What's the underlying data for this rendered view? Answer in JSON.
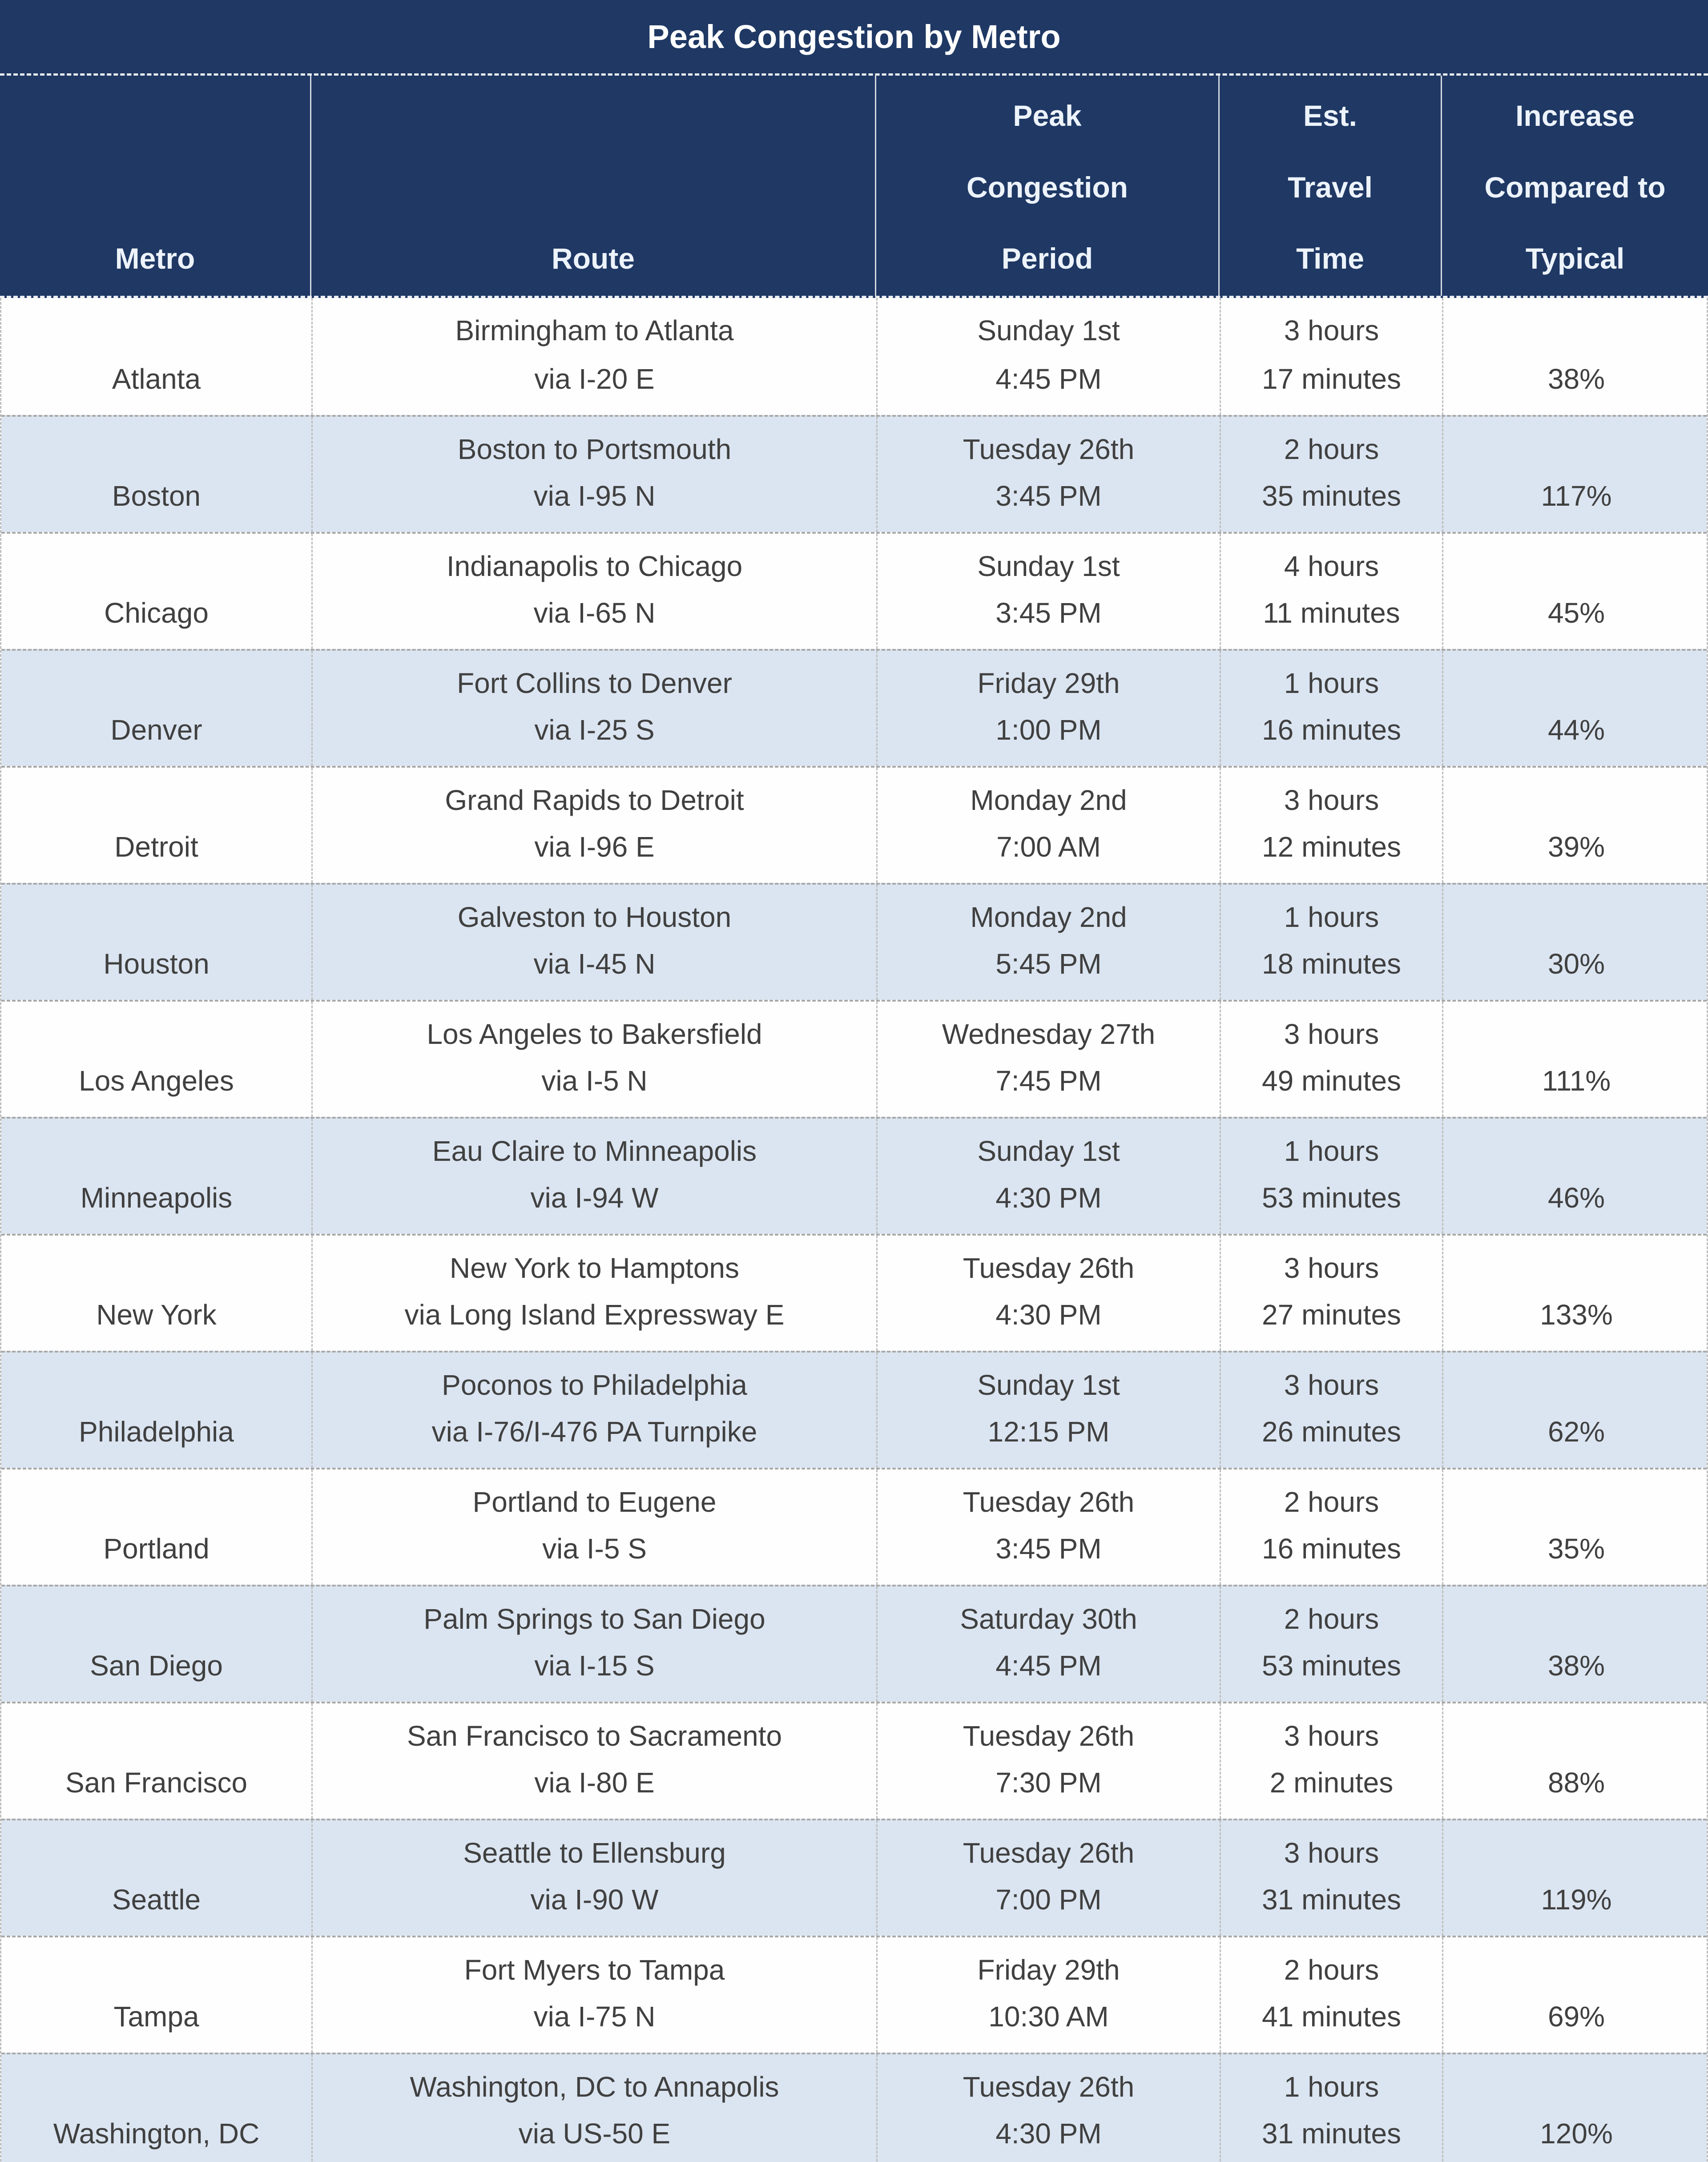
{
  "title": "Peak Congestion by Metro",
  "colors": {
    "navy": "#1F3864",
    "row-white": "#FEFEFE",
    "row-blue": "#DBE5F1",
    "body-text": "#404040",
    "header-text": "#EDF3FB",
    "divider-gray": "#A8A8A8"
  },
  "header": {
    "metro": [
      "Metro"
    ],
    "route": [
      "Route"
    ],
    "period": [
      "Peak",
      "Congestion",
      "Period"
    ],
    "time": [
      "Est.",
      "Travel",
      "Time"
    ],
    "increase": [
      "Increase",
      "Compared to",
      "Typical"
    ]
  },
  "rows": [
    {
      "metro": "Atlanta",
      "route": [
        "Birmingham to Atlanta",
        "via I-20 E"
      ],
      "period": [
        "Sunday 1st",
        "4:45 PM"
      ],
      "time": [
        "3 hours",
        "17 minutes"
      ],
      "increase": "38%"
    },
    {
      "metro": "Boston",
      "route": [
        "Boston to Portsmouth",
        "via I-95 N"
      ],
      "period": [
        "Tuesday 26th",
        "3:45 PM"
      ],
      "time": [
        "2 hours",
        "35 minutes"
      ],
      "increase": "117%"
    },
    {
      "metro": "Chicago",
      "route": [
        "Indianapolis to Chicago",
        "via I-65 N"
      ],
      "period": [
        "Sunday 1st",
        "3:45 PM"
      ],
      "time": [
        "4 hours",
        "11 minutes"
      ],
      "increase": "45%"
    },
    {
      "metro": "Denver",
      "route": [
        "Fort Collins to Denver",
        "via I-25 S"
      ],
      "period": [
        "Friday 29th",
        "1:00 PM"
      ],
      "time": [
        "1 hours",
        "16 minutes"
      ],
      "increase": "44%"
    },
    {
      "metro": "Detroit",
      "route": [
        "Grand Rapids to Detroit",
        "via I-96 E"
      ],
      "period": [
        "Monday 2nd",
        "7:00 AM"
      ],
      "time": [
        "3 hours",
        "12 minutes"
      ],
      "increase": "39%"
    },
    {
      "metro": "Houston",
      "route": [
        "Galveston to Houston",
        "via I-45 N"
      ],
      "period": [
        "Monday 2nd",
        "5:45 PM"
      ],
      "time": [
        "1 hours",
        "18 minutes"
      ],
      "increase": "30%"
    },
    {
      "metro": "Los Angeles",
      "route": [
        "Los Angeles to Bakersfield",
        "via I-5 N"
      ],
      "period": [
        "Wednesday 27th",
        "7:45 PM"
      ],
      "time": [
        "3 hours",
        "49 minutes"
      ],
      "increase": "111%"
    },
    {
      "metro": "Minneapolis",
      "route": [
        "Eau Claire to Minneapolis",
        "via I-94 W"
      ],
      "period": [
        "Sunday 1st",
        "4:30 PM"
      ],
      "time": [
        "1 hours",
        "53 minutes"
      ],
      "increase": "46%"
    },
    {
      "metro": "New York",
      "route": [
        "New York to Hamptons",
        "via Long Island Expressway E"
      ],
      "period": [
        "Tuesday 26th",
        "4:30 PM"
      ],
      "time": [
        "3 hours",
        "27 minutes"
      ],
      "increase": "133%"
    },
    {
      "metro": "Philadelphia",
      "route": [
        "Poconos to Philadelphia",
        "via I-76/I-476 PA Turnpike"
      ],
      "period": [
        "Sunday 1st",
        "12:15 PM"
      ],
      "time": [
        "3 hours",
        "26 minutes"
      ],
      "increase": "62%"
    },
    {
      "metro": "Portland",
      "route": [
        "Portland to Eugene",
        "via I-5 S"
      ],
      "period": [
        "Tuesday 26th",
        "3:45 PM"
      ],
      "time": [
        "2 hours",
        "16 minutes"
      ],
      "increase": "35%"
    },
    {
      "metro": "San Diego",
      "route": [
        "Palm Springs to San Diego",
        "via I-15 S"
      ],
      "period": [
        "Saturday 30th",
        "4:45 PM"
      ],
      "time": [
        "2 hours",
        "53 minutes"
      ],
      "increase": "38%"
    },
    {
      "metro": "San Francisco",
      "route": [
        "San Francisco to Sacramento",
        "via I-80 E"
      ],
      "period": [
        "Tuesday 26th",
        "7:30 PM"
      ],
      "time": [
        "3 hours",
        "2 minutes"
      ],
      "increase": "88%"
    },
    {
      "metro": "Seattle",
      "route": [
        "Seattle to Ellensburg",
        "via I-90 W"
      ],
      "period": [
        "Tuesday 26th",
        "7:00 PM"
      ],
      "time": [
        "3 hours",
        "31 minutes"
      ],
      "increase": "119%"
    },
    {
      "metro": "Tampa",
      "route": [
        "Fort Myers to Tampa",
        "via I-75 N"
      ],
      "period": [
        "Friday 29th",
        "10:30 AM"
      ],
      "time": [
        "2 hours",
        "41 minutes"
      ],
      "increase": "69%"
    },
    {
      "metro": "Washington, DC",
      "route": [
        "Washington, DC to Annapolis",
        "via US-50 E"
      ],
      "period": [
        "Tuesday 26th",
        "4:30 PM"
      ],
      "time": [
        "1 hours",
        "31 minutes"
      ],
      "increase": "120%"
    }
  ]
}
